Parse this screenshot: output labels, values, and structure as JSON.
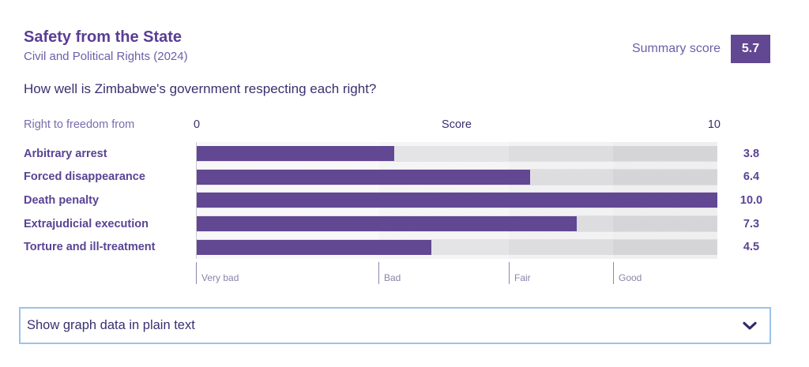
{
  "header": {
    "title": "Safety from the State",
    "subtitle": "Civil and Political Rights (2024)",
    "summary_label": "Summary score",
    "summary_value": "5.7",
    "question": "How well is Zimbabwe's government respecting each right?"
  },
  "chart_data": {
    "type": "bar",
    "title": "Safety from the State",
    "subtitle": "Civil and Political Rights (2024)",
    "row_header": "Right to freedom from",
    "axis": {
      "min": 0,
      "max": 10,
      "min_label": "0",
      "max_label": "10",
      "title": "Score"
    },
    "categories": [
      "Arbitrary arrest",
      "Forced disappearance",
      "Death penalty",
      "Extrajudicial execution",
      "Torture and ill-treatment"
    ],
    "values": [
      3.8,
      6.4,
      10.0,
      7.3,
      4.5
    ],
    "value_labels": [
      "3.8",
      "6.4",
      "10.0",
      "7.3",
      "4.5"
    ],
    "bands": [
      {
        "label": "Very bad",
        "from": 0,
        "to": 3.5
      },
      {
        "label": "Bad",
        "from": 3.5,
        "to": 6
      },
      {
        "label": "Fair",
        "from": 6,
        "to": 8
      },
      {
        "label": "Good",
        "from": 8,
        "to": 10
      }
    ],
    "bar_color": "#624793",
    "summary_score": "5.7",
    "xlim": [
      0,
      10
    ],
    "orientation": "horizontal"
  },
  "footer": {
    "expander_label": "Show graph data in plain text",
    "chevron_icon": "chevron-down"
  }
}
